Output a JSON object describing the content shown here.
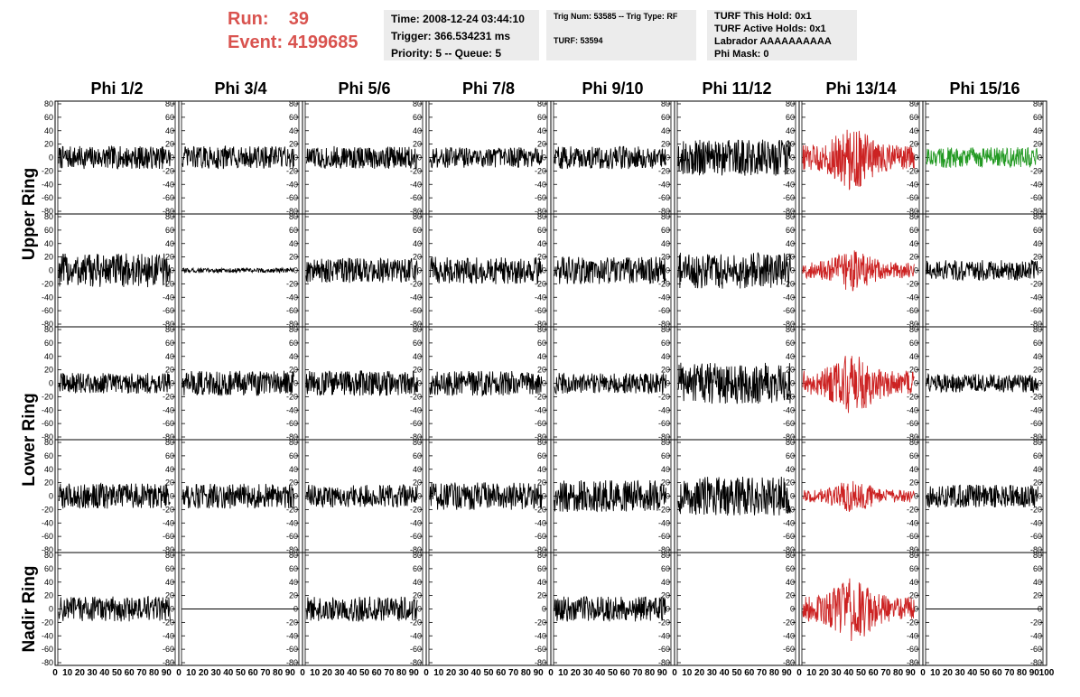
{
  "header": {
    "run_label": "Run:",
    "run_value": "39",
    "event_label": "Event:",
    "event_value": "4199685"
  },
  "info": {
    "time": "Time: 2008-12-24 03:44:10",
    "trigger": "Trigger: 366.534231 ms",
    "priority": "Priority: 5 -- Queue: 5",
    "trig_num": "Trig Num: 53585 -- Trig Type: RF",
    "turf": "TURF: 53594",
    "turf_hold": "TURF This Hold: 0x1",
    "turf_active": "TURF Active Holds: 0x1",
    "labrador": "Labrador AAAAAAAAAA",
    "phi_mask": "Phi Mask: 0"
  },
  "colors": {
    "normal": "#000000",
    "triggered": "#cc2222",
    "green": "#229922"
  },
  "chart_data": {
    "type": "line",
    "columns": [
      "Phi 1/2",
      "Phi 3/4",
      "Phi 5/6",
      "Phi 7/8",
      "Phi 9/10",
      "Phi 11/12",
      "Phi 13/14",
      "Phi 15/16"
    ],
    "ring_labels": [
      "Upper Ring",
      "Lower Ring",
      "Nadir Ring"
    ],
    "ylim": [
      -80,
      80
    ],
    "yticks": [
      -80,
      -60,
      -40,
      -20,
      0,
      20,
      40,
      60,
      80
    ],
    "xlim": [
      0,
      100
    ],
    "xticks": [
      0,
      10,
      20,
      30,
      40,
      50,
      60,
      70,
      80,
      90,
      100
    ],
    "panels": [
      [
        {
          "amp": 10,
          "color": "normal"
        },
        {
          "amp": 10,
          "color": "normal"
        },
        {
          "amp": 10,
          "color": "normal"
        },
        {
          "amp": 9,
          "color": "normal"
        },
        {
          "amp": 10,
          "color": "normal"
        },
        {
          "amp": 16,
          "color": "normal"
        },
        {
          "amp": 20,
          "color": "triggered"
        },
        {
          "amp": 9,
          "color": "green"
        }
      ],
      [
        {
          "amp": 15,
          "color": "normal"
        },
        {
          "amp": 2,
          "color": "normal"
        },
        {
          "amp": 11,
          "color": "normal"
        },
        {
          "amp": 12,
          "color": "normal"
        },
        {
          "amp": 12,
          "color": "normal"
        },
        {
          "amp": 16,
          "color": "normal"
        },
        {
          "amp": 13,
          "color": "triggered"
        },
        {
          "amp": 9,
          "color": "normal"
        }
      ],
      [
        {
          "amp": 9,
          "color": "normal"
        },
        {
          "amp": 11,
          "color": "normal"
        },
        {
          "amp": 11,
          "color": "normal"
        },
        {
          "amp": 11,
          "color": "normal"
        },
        {
          "amp": 9,
          "color": "normal"
        },
        {
          "amp": 18,
          "color": "normal"
        },
        {
          "amp": 20,
          "color": "triggered"
        },
        {
          "amp": 8,
          "color": "normal"
        }
      ],
      [
        {
          "amp": 11,
          "color": "normal"
        },
        {
          "amp": 11,
          "color": "normal"
        },
        {
          "amp": 10,
          "color": "normal"
        },
        {
          "amp": 12,
          "color": "normal"
        },
        {
          "amp": 14,
          "color": "normal"
        },
        {
          "amp": 17,
          "color": "normal"
        },
        {
          "amp": 10,
          "color": "triggered"
        },
        {
          "amp": 10,
          "color": "normal"
        }
      ],
      [
        {
          "amp": 11,
          "color": "normal"
        },
        {
          "amp": 0,
          "color": "normal"
        },
        {
          "amp": 11,
          "color": "normal"
        },
        null,
        {
          "amp": 11,
          "color": "normal"
        },
        null,
        {
          "amp": 20,
          "color": "triggered"
        },
        {
          "amp": 0,
          "color": "normal"
        }
      ]
    ]
  }
}
